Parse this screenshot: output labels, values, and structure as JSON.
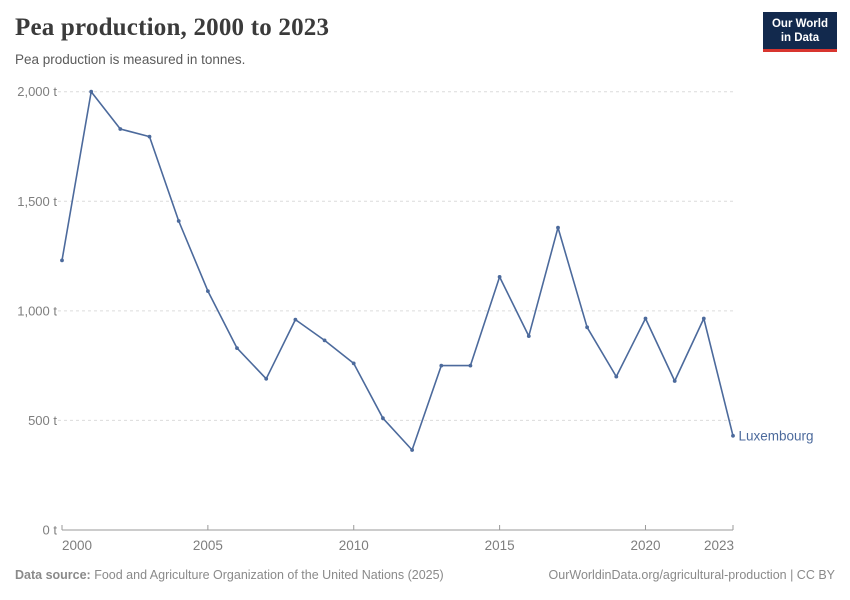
{
  "header": {
    "title": "Pea production, 2000 to 2023",
    "subtitle": "Pea production is measured in tonnes.",
    "logo": {
      "line1": "Our World",
      "line2": "in Data"
    }
  },
  "chart_data": {
    "type": "line",
    "title": "Pea production, 2000 to 2023",
    "ylabel": "",
    "xlabel": "",
    "unit": "tonnes",
    "entity": "Luxembourg",
    "x": [
      2000,
      2001,
      2002,
      2003,
      2004,
      2005,
      2006,
      2007,
      2008,
      2009,
      2010,
      2011,
      2012,
      2013,
      2014,
      2015,
      2016,
      2017,
      2018,
      2019,
      2020,
      2021,
      2022,
      2023
    ],
    "values": [
      1230,
      2000,
      1830,
      1795,
      1410,
      1090,
      830,
      690,
      960,
      865,
      760,
      510,
      365,
      750,
      750,
      1155,
      885,
      1380,
      925,
      700,
      965,
      680,
      965,
      430
    ],
    "series": [
      {
        "name": "Luxembourg",
        "values": [
          1230,
          2000,
          1830,
          1795,
          1410,
          1090,
          830,
          690,
          960,
          865,
          760,
          510,
          365,
          750,
          750,
          1155,
          885,
          1380,
          925,
          700,
          965,
          680,
          965,
          430
        ]
      }
    ],
    "xlim": [
      2000,
      2023
    ],
    "ylim": [
      0,
      2000
    ],
    "x_ticks": [
      2000,
      2005,
      2010,
      2015,
      2020,
      2023
    ],
    "x_tick_labels": [
      "2000",
      "2005",
      "2010",
      "2015",
      "2020",
      "2023"
    ],
    "y_ticks": [
      0,
      500,
      1000,
      1500,
      2000
    ],
    "y_tick_labels": [
      "0 t",
      "500 t",
      "1,000 t",
      "1,500 t",
      "2,000 t"
    ],
    "grid": true,
    "legend_position": "end-of-line-label",
    "line_color": "#4C6A9C",
    "grid_color": "#dcdcdc",
    "axis_color": "#999999",
    "tick_label_color": "#7e7e7e"
  },
  "footer": {
    "source_label": "Data source:",
    "source_text": " Food and Agriculture Organization of the United Nations (2025)",
    "credit": "OurWorldinData.org/agricultural-production | CC BY"
  },
  "colors": {
    "logo_bg": "#12294d",
    "logo_stripe": "#d8352f",
    "title": "#3b3b3b"
  }
}
